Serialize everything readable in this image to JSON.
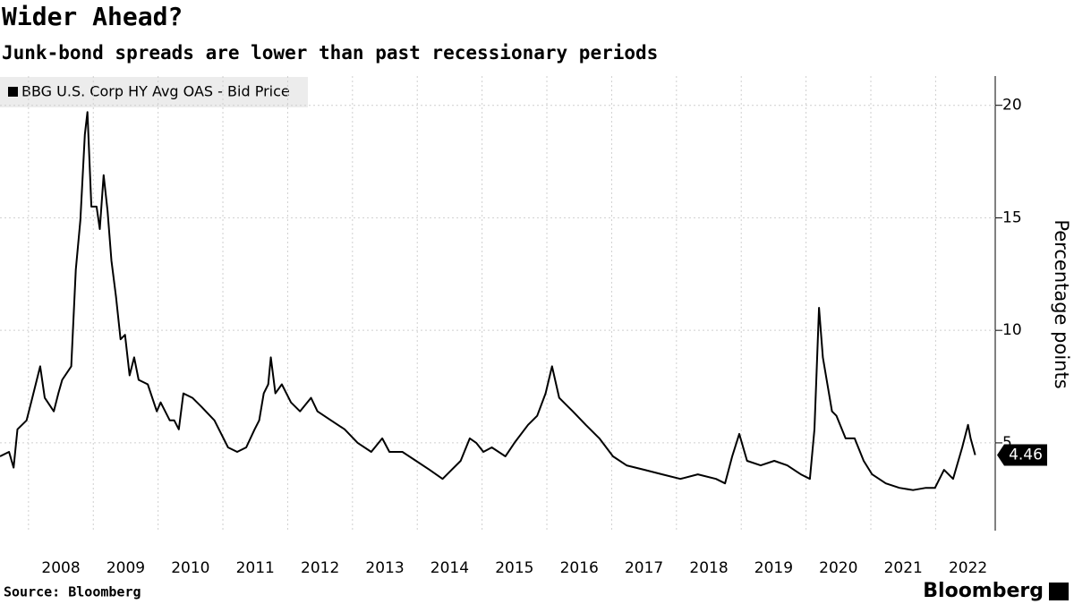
{
  "chart_data": {
    "type": "line",
    "title": "Wider Ahead?",
    "subtitle": "Junk-bond spreads are lower than past recessionary periods",
    "y_label": "Percentage points",
    "source": "Source: Bloomberg",
    "brand": "Bloomberg",
    "grid": true,
    "legend": "top-left",
    "xlim": [
      2007.56,
      2022.92
    ],
    "xticks": [
      2008,
      2009,
      2010,
      2011,
      2012,
      2013,
      2014,
      2015,
      2016,
      2017,
      2018,
      2019,
      2020,
      2021,
      2022
    ],
    "ylim": [
      1.1,
      21.3
    ],
    "yticks": [
      5,
      10,
      15,
      20
    ],
    "x": [
      2007.56,
      2007.7,
      2007.77,
      2007.83,
      2007.97,
      2008.04,
      2008.18,
      2008.25,
      2008.39,
      2008.46,
      2008.52,
      2008.66,
      2008.73,
      2008.8,
      2008.87,
      2008.91,
      2008.97,
      2009.05,
      2009.1,
      2009.16,
      2009.22,
      2009.28,
      2009.35,
      2009.42,
      2009.49,
      2009.56,
      2009.63,
      2009.7,
      2009.84,
      2009.98,
      2010.04,
      2010.18,
      2010.25,
      2010.32,
      2010.39,
      2010.53,
      2010.67,
      2010.87,
      2011.08,
      2011.22,
      2011.36,
      2011.49,
      2011.56,
      2011.63,
      2011.7,
      2011.74,
      2011.81,
      2011.91,
      2012.05,
      2012.19,
      2012.36,
      2012.46,
      2012.67,
      2012.88,
      2013.08,
      2013.29,
      2013.46,
      2013.57,
      2013.77,
      2013.98,
      2014.19,
      2014.39,
      2014.53,
      2014.67,
      2014.81,
      2014.91,
      2015.02,
      2015.15,
      2015.36,
      2015.5,
      2015.71,
      2015.85,
      2015.98,
      2016.08,
      2016.19,
      2016.4,
      2016.6,
      2016.81,
      2017.02,
      2017.23,
      2017.51,
      2017.78,
      2018.06,
      2018.33,
      2018.61,
      2018.75,
      2018.86,
      2018.97,
      2019.09,
      2019.3,
      2019.51,
      2019.71,
      2019.92,
      2020.06,
      2020.13,
      2020.2,
      2020.26,
      2020.33,
      2020.4,
      2020.47,
      2020.61,
      2020.75,
      2020.89,
      2021.02,
      2021.23,
      2021.44,
      2021.65,
      2021.85,
      2021.99,
      2022.13,
      2022.27,
      2022.41,
      2022.5,
      2022.54,
      2022.61
    ],
    "series": [
      {
        "name": "BBG U.S. Corp HY Avg OAS - Bid Price",
        "color": "#000000",
        "values": [
          4.4,
          4.6,
          3.9,
          5.6,
          6.0,
          6.8,
          8.4,
          7.0,
          6.4,
          7.2,
          7.8,
          8.4,
          12.7,
          14.9,
          18.7,
          19.7,
          15.5,
          15.5,
          14.5,
          16.9,
          15.3,
          13.1,
          11.5,
          9.6,
          9.8,
          8.0,
          8.8,
          7.8,
          7.6,
          6.4,
          6.8,
          6.0,
          6.0,
          5.6,
          7.2,
          7.0,
          6.6,
          6.0,
          4.8,
          4.6,
          4.8,
          5.6,
          6.0,
          7.2,
          7.6,
          8.8,
          7.2,
          7.6,
          6.8,
          6.4,
          7.0,
          6.4,
          6.0,
          5.6,
          5.0,
          4.6,
          5.2,
          4.6,
          4.6,
          4.2,
          3.8,
          3.4,
          3.8,
          4.2,
          5.2,
          5.0,
          4.6,
          4.8,
          4.4,
          5.0,
          5.8,
          6.2,
          7.2,
          8.4,
          7.0,
          6.4,
          5.8,
          5.2,
          4.4,
          4.0,
          3.8,
          3.6,
          3.4,
          3.6,
          3.4,
          3.2,
          4.4,
          5.4,
          4.2,
          4.0,
          4.2,
          4.0,
          3.6,
          3.4,
          5.6,
          11.0,
          8.8,
          7.6,
          6.4,
          6.2,
          5.2,
          5.2,
          4.2,
          3.6,
          3.2,
          3.0,
          2.9,
          3.0,
          3.0,
          3.8,
          3.4,
          4.8,
          5.8,
          5.2,
          4.46
        ]
      }
    ]
  }
}
